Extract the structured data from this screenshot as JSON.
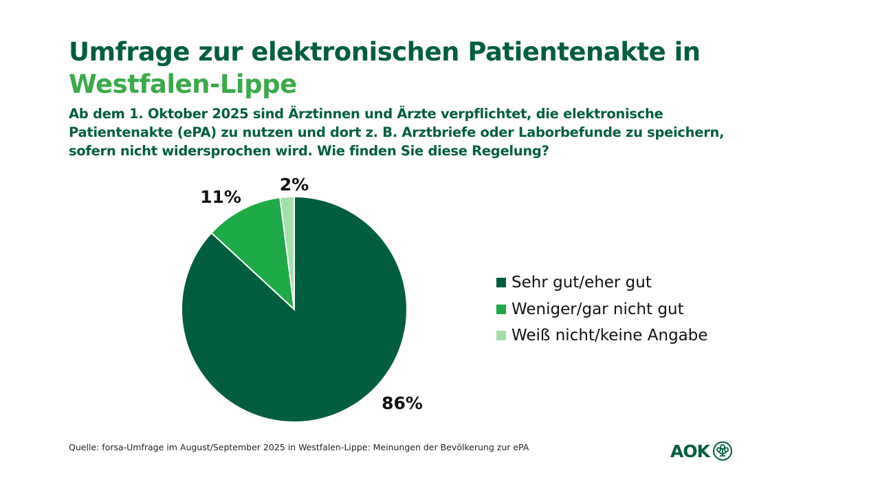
{
  "header": {
    "title_line1": "Umfrage zur elektronischen Patientenakte in",
    "title_line2": "Westfalen-Lippe",
    "subtitle": "Ab dem 1. Oktober 2025 sind Ärztinnen und Ärzte verpflichtet, die elektronische Patientenakte (ePA) zu nutzen und dort z. B. Arztbriefe oder Laborbefunde zu speichern, sofern nicht widersprochen wird. Wie finden Sie diese Regelung?"
  },
  "chart_data": {
    "type": "pie",
    "title": "Umfrage zur elektronischen Patientenakte in Westfalen-Lippe",
    "categories": [
      "Sehr gut/eher gut",
      "Weniger/gar nicht gut",
      "Weiß nicht/keine Angabe"
    ],
    "values": [
      86,
      11,
      2
    ],
    "labels": [
      "86%",
      "11%",
      "2%"
    ],
    "colors": [
      "#005e3f",
      "#1eaa46",
      "#a5e0aa"
    ],
    "start": "top",
    "direction": "clockwise",
    "legend_position": "right"
  },
  "footer": {
    "source": "Quelle: forsa-Umfrage im August/September 2025 in Westfalen-Lippe: Meinungen der Bevölkerung zur ePA",
    "logo_text": "AOK"
  }
}
